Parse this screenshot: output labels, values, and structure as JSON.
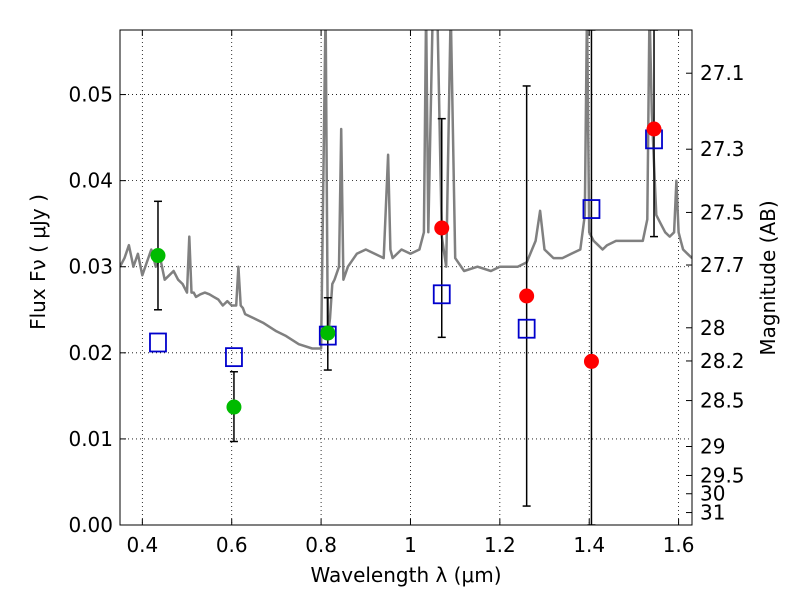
{
  "chart_data": {
    "type": "scatter",
    "xlabel": "Wavelength  λ (μm)",
    "ylabel": "Flux  Fν  ( μJy )",
    "ylabel_right": "Magnitude (AB)",
    "xlim": [
      0.35,
      1.63
    ],
    "ylim": [
      0.0,
      0.0575
    ],
    "grid": true,
    "x_ticks": [
      0.4,
      0.6,
      0.8,
      1.0,
      1.2,
      1.4,
      1.6
    ],
    "x_tick_labels": [
      "0.4",
      "0.6",
      "0.8",
      "1",
      "1.2",
      "1.4",
      "1.6"
    ],
    "y_ticks": [
      0.0,
      0.01,
      0.02,
      0.03,
      0.04,
      0.05
    ],
    "y_tick_labels": [
      "0.00",
      "0.01",
      "0.02",
      "0.03",
      "0.04",
      "0.05"
    ],
    "right_ticks": [
      {
        "mag": 27.1,
        "label": "27.1"
      },
      {
        "mag": 27.3,
        "label": "27.3"
      },
      {
        "mag": 27.5,
        "label": "27.5"
      },
      {
        "mag": 27.7,
        "label": "27.7"
      },
      {
        "mag": 28.0,
        "label": "28"
      },
      {
        "mag": 28.2,
        "label": "28.2"
      },
      {
        "mag": 28.5,
        "label": "28.5"
      },
      {
        "mag": 29.0,
        "label": "29"
      },
      {
        "mag": 29.5,
        "label": "29.5"
      },
      {
        "mag": 30.0,
        "label": "30"
      },
      {
        "mag": 31.0,
        "label": "31"
      }
    ],
    "series": [
      {
        "kind": "spectrum",
        "color": "#808080",
        "x": [
          0.35,
          0.36,
          0.37,
          0.38,
          0.39,
          0.4,
          0.41,
          0.42,
          0.43,
          0.44,
          0.45,
          0.46,
          0.47,
          0.48,
          0.49,
          0.5,
          0.505,
          0.51,
          0.515,
          0.52,
          0.53,
          0.54,
          0.55,
          0.56,
          0.57,
          0.58,
          0.59,
          0.6,
          0.61,
          0.615,
          0.62,
          0.625,
          0.63,
          0.65,
          0.67,
          0.7,
          0.72,
          0.75,
          0.78,
          0.8,
          0.81,
          0.815,
          0.82,
          0.825,
          0.83,
          0.84,
          0.845,
          0.85,
          0.86,
          0.88,
          0.9,
          0.92,
          0.94,
          0.95,
          0.955,
          0.96,
          0.98,
          1.0,
          1.02,
          1.03,
          1.035,
          1.04,
          1.05,
          1.06,
          1.07,
          1.08,
          1.09,
          1.1,
          1.12,
          1.15,
          1.18,
          1.2,
          1.22,
          1.24,
          1.26,
          1.28,
          1.29,
          1.3,
          1.31,
          1.32,
          1.34,
          1.36,
          1.38,
          1.39,
          1.395,
          1.4,
          1.41,
          1.42,
          1.43,
          1.44,
          1.46,
          1.48,
          1.5,
          1.52,
          1.53,
          1.535,
          1.54,
          1.545,
          1.55,
          1.56,
          1.57,
          1.58,
          1.59,
          1.595,
          1.6,
          1.605,
          1.61,
          1.62,
          1.63
        ],
        "y": [
          0.03,
          0.031,
          0.0325,
          0.03,
          0.0315,
          0.029,
          0.0305,
          0.032,
          0.03,
          0.031,
          0.0285,
          0.029,
          0.0295,
          0.0285,
          0.028,
          0.027,
          0.0335,
          0.027,
          0.027,
          0.0265,
          0.0268,
          0.027,
          0.0268,
          0.0265,
          0.0262,
          0.0255,
          0.026,
          0.0255,
          0.0255,
          0.03,
          0.0255,
          0.0252,
          0.0245,
          0.024,
          0.0235,
          0.0225,
          0.022,
          0.021,
          0.0205,
          0.0205,
          0.06,
          0.022,
          0.024,
          0.028,
          0.0285,
          0.03,
          0.046,
          0.0285,
          0.03,
          0.0315,
          0.032,
          0.0315,
          0.031,
          0.043,
          0.032,
          0.031,
          0.032,
          0.0315,
          0.032,
          0.034,
          0.06,
          0.034,
          0.06,
          0.06,
          0.0335,
          0.03,
          0.06,
          0.031,
          0.0295,
          0.03,
          0.0295,
          0.03,
          0.03,
          0.03,
          0.0305,
          0.033,
          0.0365,
          0.032,
          0.0315,
          0.031,
          0.031,
          0.0315,
          0.032,
          0.036,
          0.06,
          0.034,
          0.033,
          0.0325,
          0.032,
          0.0325,
          0.033,
          0.033,
          0.033,
          0.033,
          0.0355,
          0.06,
          0.048,
          0.042,
          0.036,
          0.035,
          0.034,
          0.0335,
          0.034,
          0.04,
          0.034,
          0.033,
          0.032,
          0.0315,
          0.031
        ]
      },
      {
        "kind": "model_points",
        "marker": "open-square",
        "color": "#0000cc",
        "x": [
          0.435,
          0.605,
          0.815,
          1.07,
          1.26,
          1.405,
          1.545
        ],
        "y": [
          0.0212,
          0.0195,
          0.022,
          0.0268,
          0.0228,
          0.0367,
          0.0448
        ]
      },
      {
        "kind": "observed_points",
        "marker": "filled-circle",
        "colors": [
          "#00bb00",
          "#00bb00",
          "#00bb00",
          "#ff0000",
          "#ff0000",
          "#ff0000",
          "#ff0000"
        ],
        "x": [
          0.435,
          0.605,
          0.815,
          1.07,
          1.26,
          1.405,
          1.545
        ],
        "y": [
          0.0313,
          0.0137,
          0.0223,
          0.0345,
          0.0266,
          0.019,
          0.046
        ],
        "err_low": [
          0.025,
          0.0097,
          0.018,
          0.0218,
          0.0022,
          0.0,
          0.0335
        ],
        "err_high": [
          0.0376,
          0.0178,
          0.0264,
          0.0472,
          0.051,
          0.0575,
          0.0575
        ]
      }
    ]
  }
}
